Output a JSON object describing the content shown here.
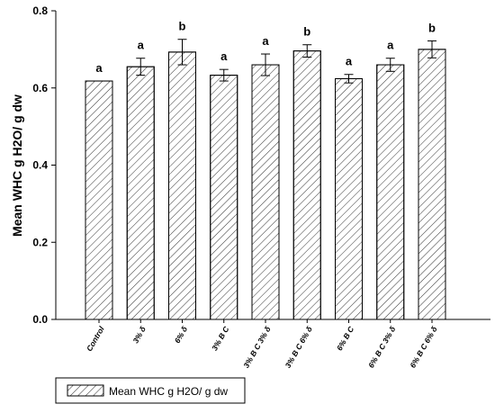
{
  "chart_data": {
    "type": "bar",
    "title": "",
    "xlabel": "",
    "ylabel": "Mean WHC g H2O/ g dw",
    "ylim": [
      0,
      0.8
    ],
    "yticks": [
      "0.0",
      "0.2",
      "0.4",
      "0.6",
      "0.8"
    ],
    "categories": [
      "Control",
      "3% δ",
      "6% δ",
      "3% B C",
      "3% B C 3% δ",
      "3% B C 6% δ",
      "6% B C",
      "6% B C 3% δ",
      "6% B C 6% δ"
    ],
    "values": [
      0.618,
      0.655,
      0.693,
      0.633,
      0.66,
      0.696,
      0.624,
      0.66,
      0.7
    ],
    "errors": [
      0.0,
      0.022,
      0.033,
      0.015,
      0.028,
      0.016,
      0.011,
      0.017,
      0.022
    ],
    "significance": [
      "a",
      "a",
      "b",
      "a",
      "a",
      "b",
      "a",
      "a",
      "b"
    ],
    "legend": {
      "label": "Mean WHC g H2O/ g dw",
      "position": "bottom-left"
    },
    "bar_fill": "hatched",
    "grid": false
  }
}
